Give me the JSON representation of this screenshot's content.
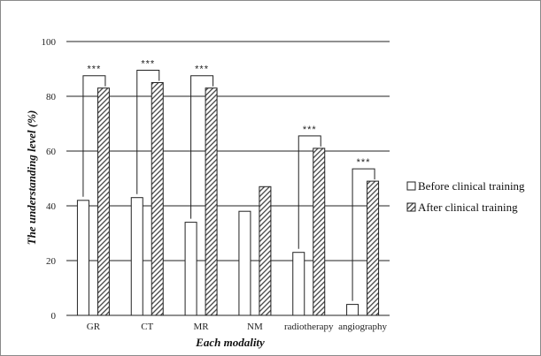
{
  "chart_data": {
    "type": "bar",
    "categories": [
      "GR",
      "CT",
      "MR",
      "NM",
      "radiotherapy",
      "angiography"
    ],
    "series": [
      {
        "name": "Before clinical training",
        "values": [
          42,
          43,
          34,
          38,
          23,
          4
        ],
        "pattern": "white",
        "color": "#ffffff"
      },
      {
        "name": "After clinical training",
        "values": [
          83,
          85,
          83,
          47,
          61,
          49
        ],
        "pattern": "hatched",
        "color": "#555555"
      }
    ],
    "significance": [
      {
        "category": "GR",
        "label": "***"
      },
      {
        "category": "CT",
        "label": "***"
      },
      {
        "category": "MR",
        "label": "***"
      },
      {
        "category": "radiotherapy",
        "label": "***"
      },
      {
        "category": "angiography",
        "label": "***"
      }
    ],
    "title": "",
    "xlabel": "Each modality",
    "ylabel": "The understanding level (%)",
    "ylim": [
      0,
      100
    ],
    "yticks": [
      "0",
      "20",
      "40",
      "60",
      "80",
      "100"
    ],
    "grid": true,
    "legend_position": "right"
  }
}
